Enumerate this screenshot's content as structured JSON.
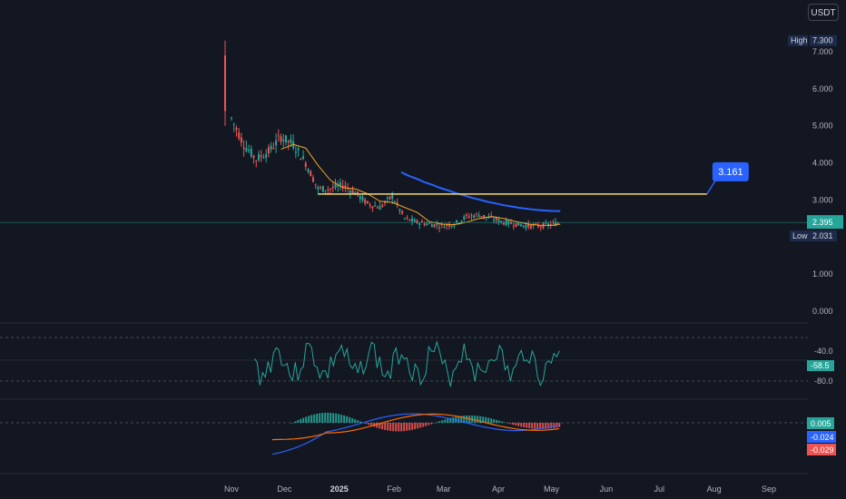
{
  "currency_button": "USDT",
  "colors": {
    "background": "#131722",
    "grid": "#1e222d",
    "up": "#26a69a",
    "down": "#ef5350",
    "ma_short": "#f5a623",
    "ma_long": "#2962ff",
    "hline": "#f7d774",
    "oscillator": "#26a69a",
    "macd": "#2962ff",
    "signal": "#ff6d00",
    "callout": "#2962ff"
  },
  "price_axis": {
    "ticks": [
      "7.000",
      "6.000",
      "5.000",
      "4.000",
      "3.000",
      "1.000",
      "0.000"
    ],
    "tick_values": [
      7,
      6,
      5,
      4,
      3,
      1,
      0
    ]
  },
  "labels": {
    "high_label": "High",
    "high_value": "7.300",
    "low_label": "Low",
    "low_value": "2.031",
    "last_price": "2.395",
    "callout": "3.161"
  },
  "osc_axis": {
    "ticks": [
      "-40.0",
      "-80.0"
    ],
    "current": "-58.5"
  },
  "macd_axis": {
    "values": [
      "0.005",
      "-0.024",
      "-0.029"
    ]
  },
  "time_axis": {
    "labels": [
      "Nov",
      "Dec",
      "2025",
      "Feb",
      "Mar",
      "Apr",
      "May",
      "Jun",
      "Jul",
      "Aug",
      "Sep"
    ]
  },
  "chart_data": {
    "type": "line",
    "symbol_currency": "USDT",
    "price": {
      "x": [
        "2024-11-01",
        "2024-11-08",
        "2024-11-15",
        "2024-11-22",
        "2024-11-29",
        "2024-12-06",
        "2024-12-13",
        "2024-12-20",
        "2024-12-27",
        "2025-01-03",
        "2025-01-10",
        "2025-01-17",
        "2025-01-24",
        "2025-01-31",
        "2025-02-07",
        "2025-02-14",
        "2025-02-21",
        "2025-02-28",
        "2025-03-07",
        "2025-03-14",
        "2025-03-21",
        "2025-03-28",
        "2025-04-04",
        "2025-04-11",
        "2025-04-18",
        "2025-04-25",
        "2025-05-02",
        "2025-05-06"
      ],
      "close": [
        5.2,
        4.5,
        4.1,
        4.3,
        4.7,
        4.5,
        4.0,
        3.3,
        3.3,
        3.4,
        3.2,
        2.9,
        2.8,
        3.1,
        2.5,
        2.4,
        2.35,
        2.3,
        2.35,
        2.55,
        2.6,
        2.5,
        2.4,
        2.35,
        2.3,
        2.3,
        2.35,
        2.395
      ],
      "high": 7.3,
      "low": 2.031,
      "last": 2.395
    },
    "horizontal_line": 3.161,
    "ylim": [
      0,
      7.3
    ],
    "oscillator": {
      "ticks": [
        -40,
        -80
      ],
      "current": -58.5
    },
    "macd": {
      "histogram": 0.005,
      "macd": -0.024,
      "signal": -0.029
    },
    "grid": false
  }
}
